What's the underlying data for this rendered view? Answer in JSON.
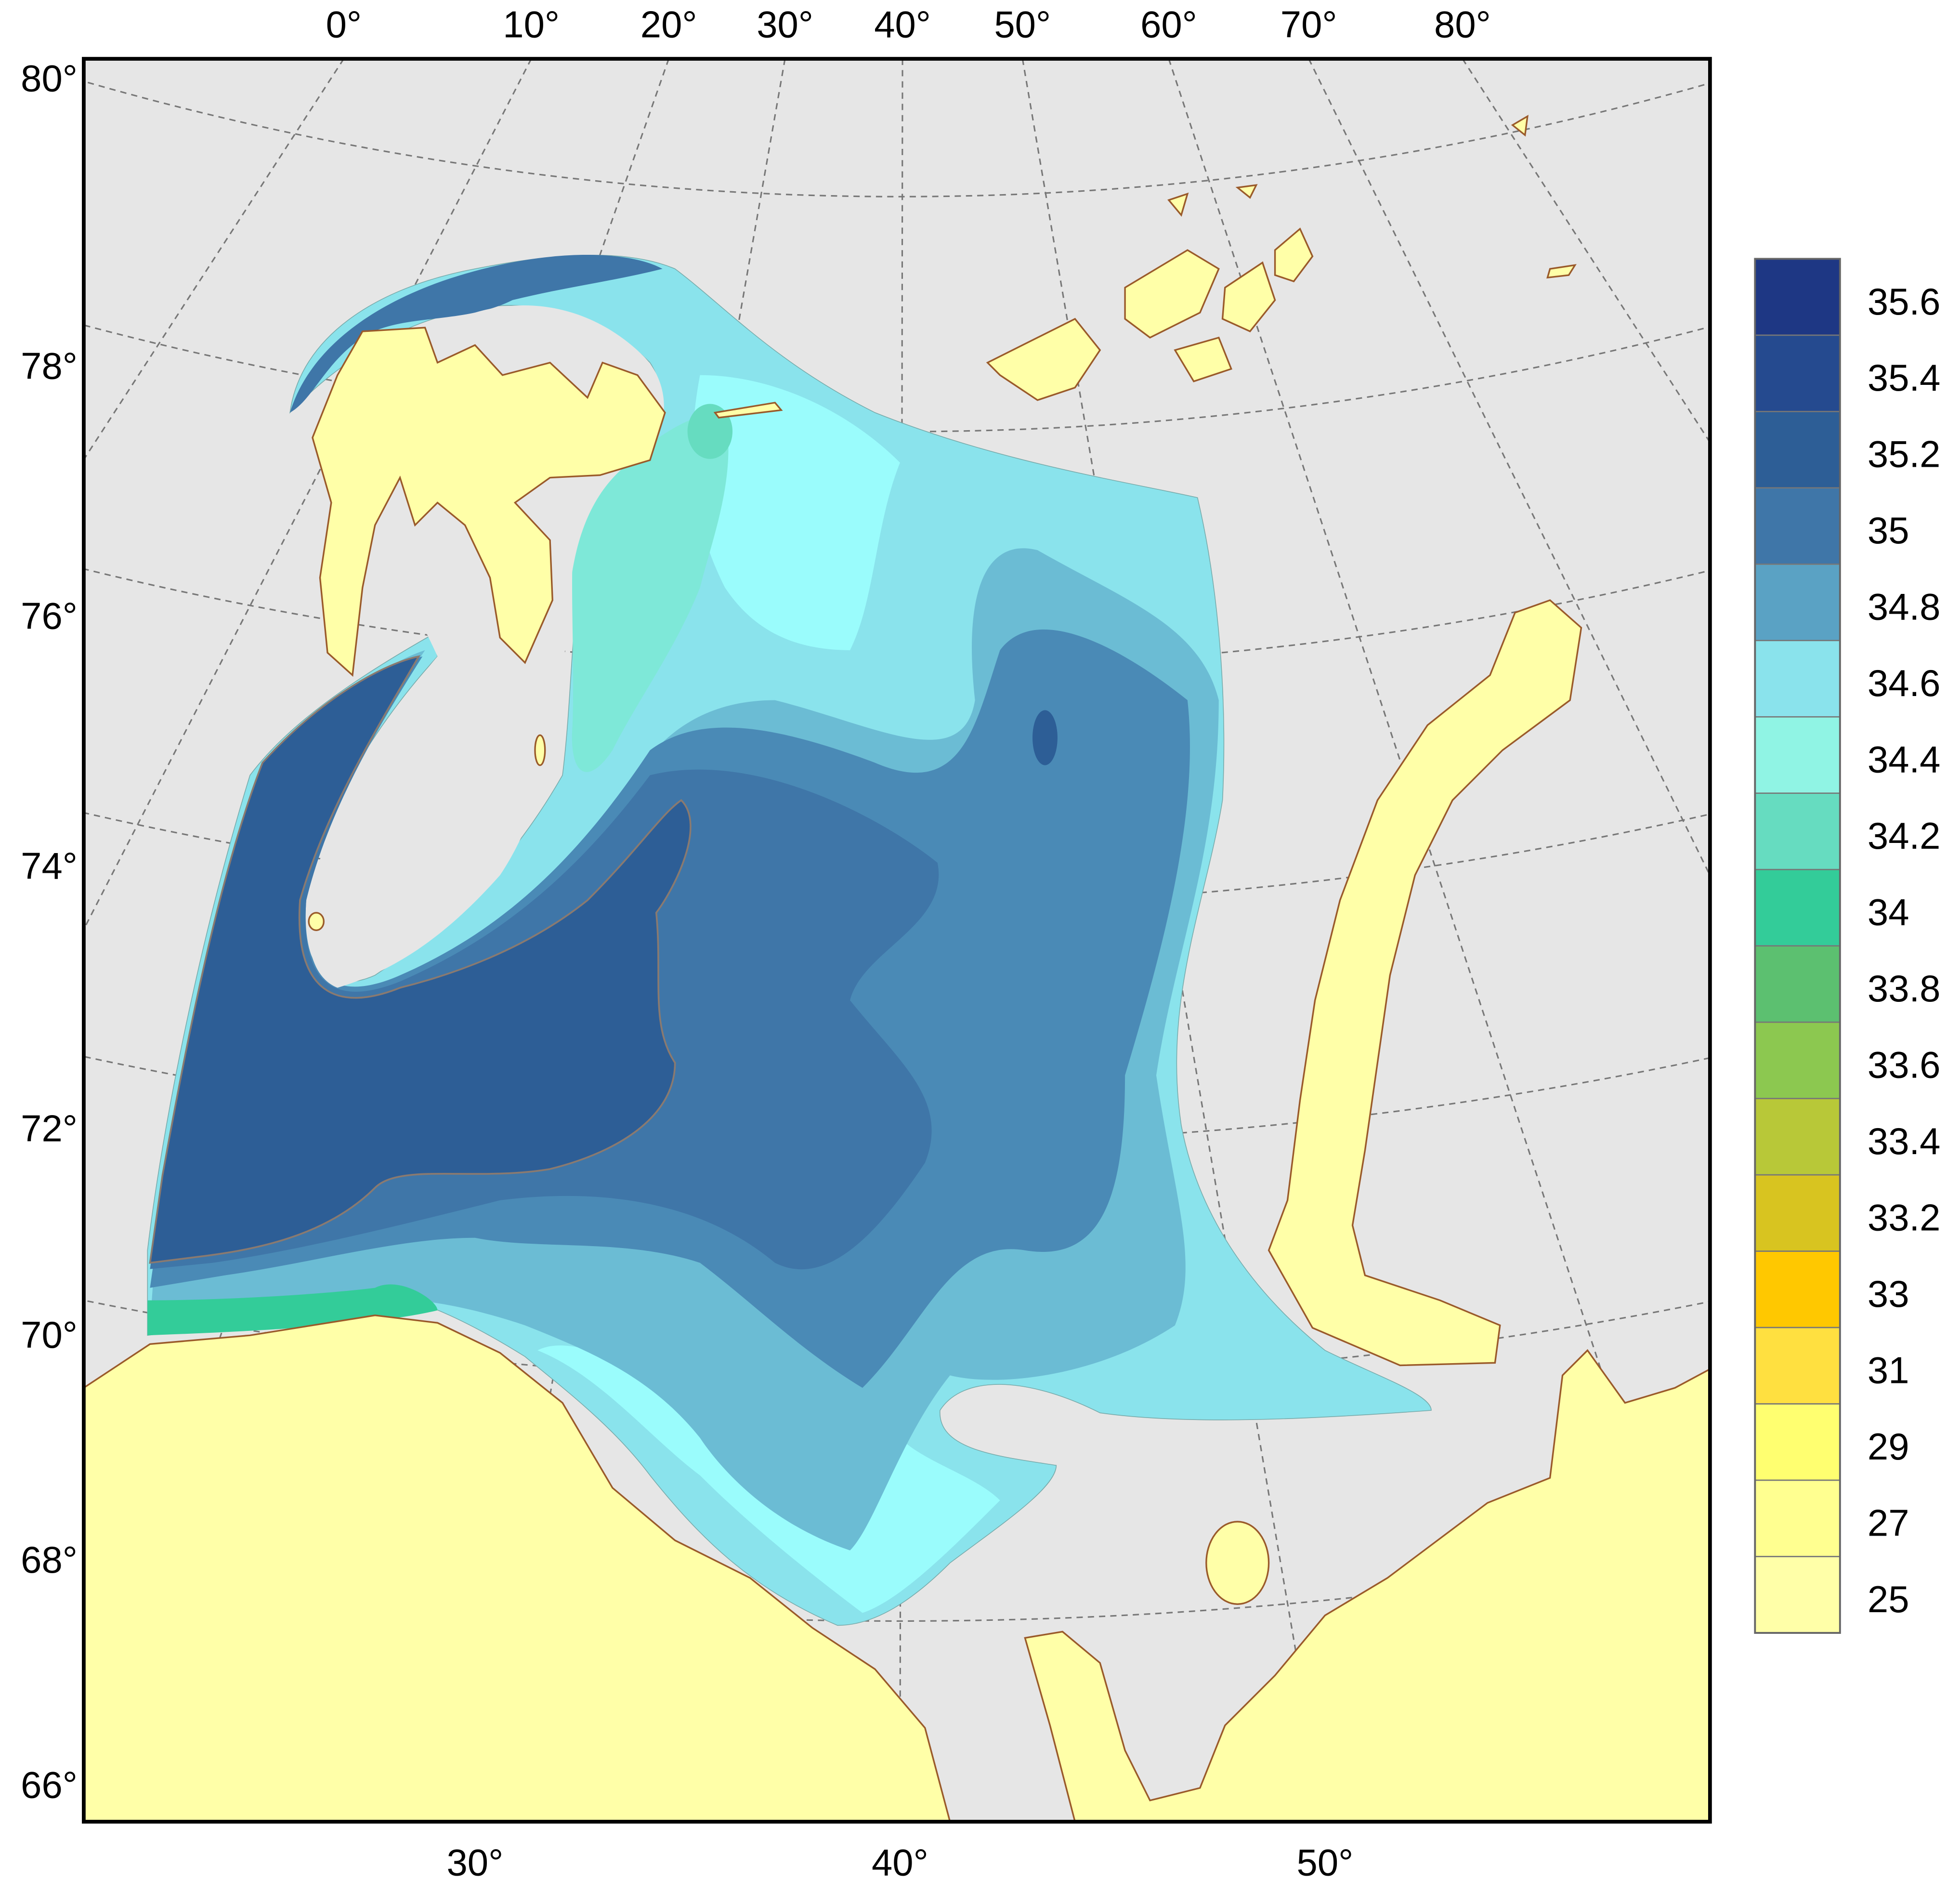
{
  "map": {
    "top_longitude_labels": [
      "0°",
      "10°",
      "20°",
      "30°",
      "40°",
      "50°",
      "60°",
      "70°",
      "80°"
    ],
    "left_latitude_labels": [
      "80°",
      "78°",
      "76°",
      "74°",
      "72°",
      "70°",
      "68°",
      "66°"
    ],
    "bottom_longitude_labels": [
      "30°",
      "40°",
      "50°"
    ],
    "colorbar": {
      "labels": [
        "35.6",
        "35.4",
        "35.2",
        "35",
        "34.8",
        "34.6",
        "34.4",
        "34.2",
        "34",
        "33.8",
        "33.6",
        "33.4",
        "33.2",
        "33",
        "31",
        "29",
        "27",
        "25"
      ],
      "colors": [
        "#1e3784",
        "#254a8f",
        "#2d5e96",
        "#3f76a8",
        "#5aa2c4",
        "#8ae3ec",
        "#90f4e4",
        "#66dcc0",
        "#33cc99",
        "#5cc070",
        "#8cc850",
        "#b8c838",
        "#d8c420",
        "#ffc800",
        "#ffe040",
        "#ffff70",
        "#ffff90",
        "#ffffa8"
      ]
    }
  }
}
